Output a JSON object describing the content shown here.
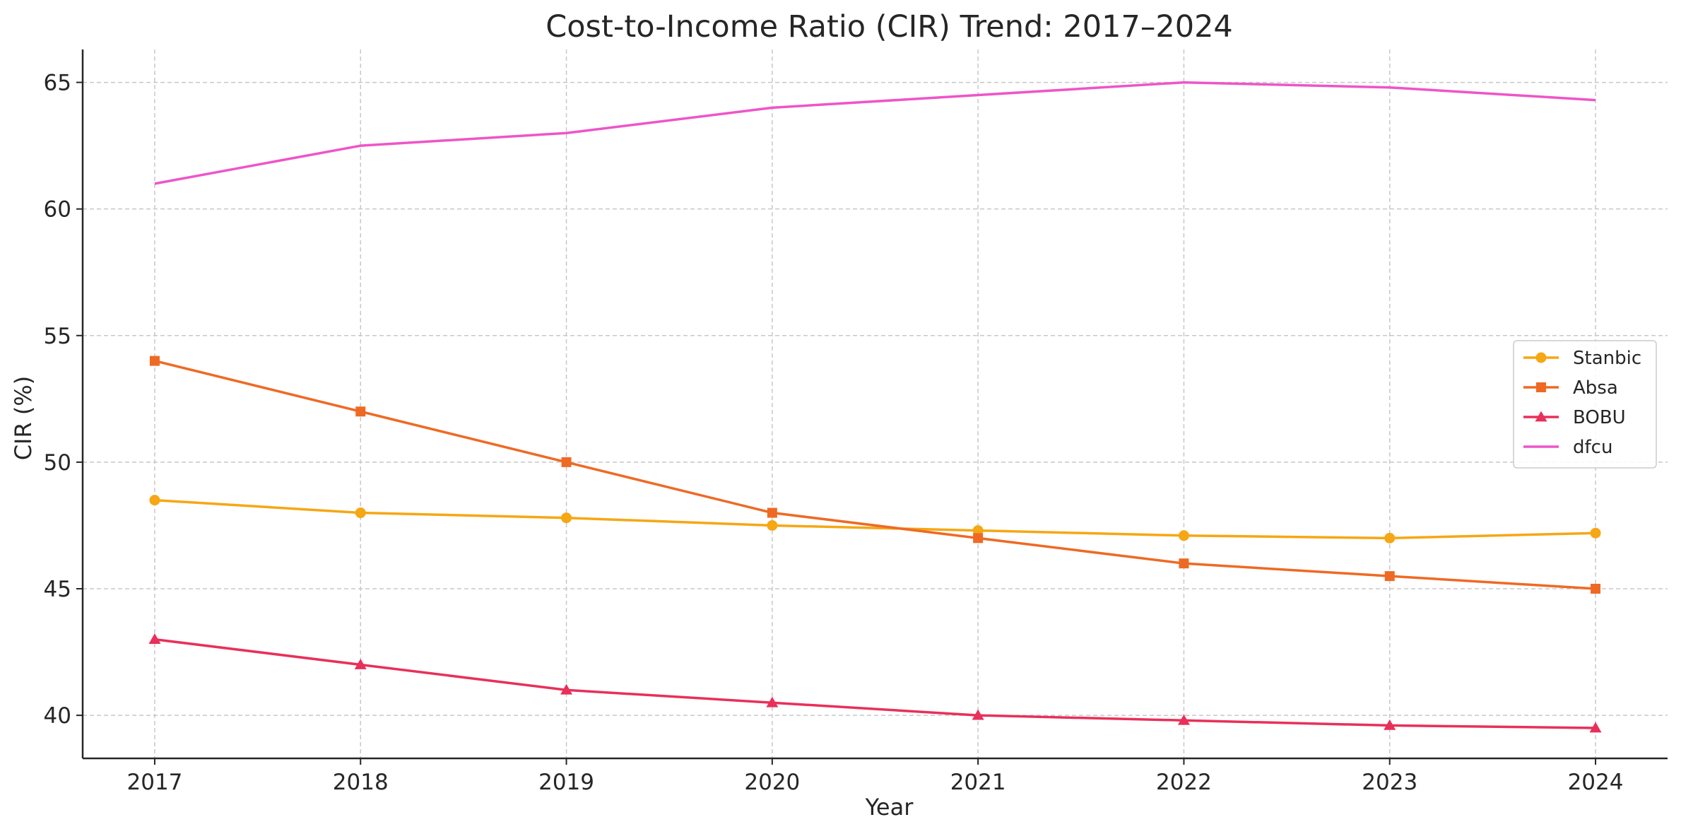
{
  "chart_data": {
    "type": "line",
    "title": "Cost-to-Income Ratio (CIR) Trend: 2017–2024",
    "xlabel": "Year",
    "ylabel": "CIR (%)",
    "x": [
      "2017",
      "2018",
      "2019",
      "2020",
      "2021",
      "2022",
      "2023",
      "2024"
    ],
    "xlim": [
      2016.65,
      2024.35
    ],
    "ylim": [
      38.3,
      66.3
    ],
    "yticks": [
      "40",
      "45",
      "50",
      "55",
      "60",
      "65"
    ],
    "grid": true,
    "legend_position": "center-right",
    "series": [
      {
        "name": "Stanbic",
        "color": "#F5A714",
        "marker": "circle",
        "values": [
          48.5,
          48.0,
          47.8,
          47.5,
          47.3,
          47.1,
          47.0,
          47.2
        ]
      },
      {
        "name": "Absa",
        "color": "#EE6A24",
        "marker": "square",
        "values": [
          54.0,
          52.0,
          50.0,
          48.0,
          47.0,
          46.0,
          45.5,
          45.0
        ]
      },
      {
        "name": "BOBU",
        "color": "#E8305A",
        "marker": "triangle",
        "values": [
          43.0,
          42.0,
          41.0,
          40.5,
          40.0,
          39.8,
          39.6,
          39.5
        ]
      },
      {
        "name": "dfcu",
        "color": "#EE55C8",
        "marker": "none",
        "values": [
          61.0,
          62.5,
          63.0,
          64.0,
          64.5,
          65.0,
          64.8,
          64.3
        ]
      }
    ]
  }
}
